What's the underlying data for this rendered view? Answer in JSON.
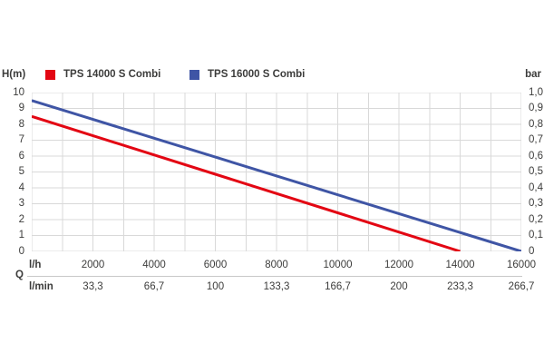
{
  "chart_data": {
    "type": "line",
    "title": "",
    "grid": "on",
    "legend_position": "top",
    "colors": {
      "series_red": "#e30613",
      "series_blue": "#3f55a5",
      "grid": "#d9d9d9",
      "text": "#3c3c3b",
      "divider": "#c8c8c8",
      "background": "#ffffff"
    },
    "x_axis": {
      "label": "Q",
      "min": 0,
      "max": 16000,
      "grid_step": 1000,
      "unit_rows": [
        {
          "unit": "l/h",
          "tick_values": [
            2000,
            4000,
            6000,
            8000,
            10000,
            12000,
            14000,
            16000
          ],
          "tick_labels": [
            "2000",
            "4000",
            "6000",
            "8000",
            "10000",
            "12000",
            "14000",
            "16000"
          ]
        },
        {
          "unit": "l/min",
          "tick_values": [
            2000,
            4000,
            6000,
            8000,
            10000,
            12000,
            14000,
            16000
          ],
          "tick_labels": [
            "33,3",
            "66,7",
            "100",
            "133,3",
            "166,7",
            "200",
            "233,3",
            "266,7"
          ]
        }
      ]
    },
    "left_axis": {
      "label": "H(m)",
      "min": 0,
      "max": 10,
      "grid_step": 1,
      "ticks": [
        "10",
        "9",
        "8",
        "7",
        "6",
        "5",
        "4",
        "3",
        "2",
        "1",
        "0"
      ]
    },
    "right_axis": {
      "label": "bar",
      "min": 0,
      "max": 1.0,
      "ticks": [
        "1,0",
        "0,9",
        "0,8",
        "0,7",
        "0,6",
        "0,5",
        "0,4",
        "0,3",
        "0,2",
        "0,1",
        "0"
      ]
    },
    "series": [
      {
        "name": "TPS 14000 S Combi",
        "color": "#e30613",
        "points": [
          [
            0,
            8.5
          ],
          [
            14000,
            0
          ]
        ]
      },
      {
        "name": "TPS 16000 S Combi",
        "color": "#3f55a5",
        "points": [
          [
            0,
            9.5
          ],
          [
            16000,
            0
          ]
        ]
      }
    ]
  }
}
